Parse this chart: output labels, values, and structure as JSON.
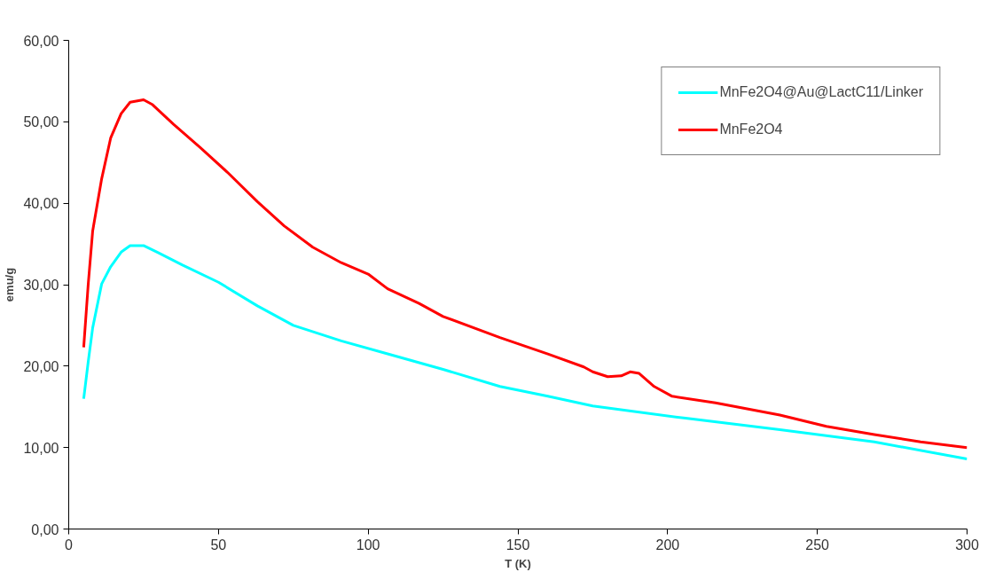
{
  "chart_data": {
    "type": "line",
    "xlabel": "T (K)",
    "ylabel": "emu/g",
    "xlim": [
      0,
      300
    ],
    "xticks": [
      0,
      50,
      100,
      150,
      200,
      250,
      300
    ],
    "ylim": [
      0,
      60
    ],
    "yticks": [
      {
        "value": 0,
        "label": "0,00"
      },
      {
        "value": 10,
        "label": "10,00"
      },
      {
        "value": 20,
        "label": "20,00"
      },
      {
        "value": 30,
        "label": "30,00"
      },
      {
        "value": 40,
        "label": "40,00"
      },
      {
        "value": 50,
        "label": "50,00"
      },
      {
        "value": 60,
        "label": "60,00"
      }
    ],
    "grid": false,
    "legend": "top right",
    "marker": "none",
    "line_style": "solid",
    "series": [
      {
        "name": "MnFe2O4@Au@LactC11/Linker",
        "color": "#00ffff",
        "x": [
          5,
          6.5,
          8,
          11,
          14,
          17.5,
          20.5,
          25,
          30,
          38,
          50,
          63,
          75,
          91,
          106.5,
          125,
          144,
          160,
          175,
          206,
          237.5,
          269,
          300
        ],
        "values": [
          16.0,
          20.5,
          24.7,
          30.1,
          32.2,
          34.0,
          34.8,
          34.8,
          33.9,
          32.4,
          30.3,
          27.4,
          25.0,
          23.1,
          21.5,
          19.6,
          17.5,
          16.3,
          15.1,
          13.6,
          12.2,
          10.7,
          8.6
        ]
      },
      {
        "name": "MnFe2O4",
        "color": "#ff0000",
        "x": [
          5,
          6.5,
          8,
          11,
          14,
          17.5,
          20.5,
          25,
          28,
          35,
          44,
          53,
          63,
          72,
          81.5,
          91,
          100,
          106.5,
          117,
          125,
          144,
          160,
          172,
          175,
          180,
          184.5,
          187.5,
          190.5,
          195.5,
          201.5,
          216,
          237.5,
          253,
          269,
          284.5,
          300
        ],
        "values": [
          22.3,
          30,
          36.6,
          43,
          48,
          51,
          52.4,
          52.7,
          52.1,
          49.7,
          46.8,
          43.8,
          40.2,
          37.2,
          34.6,
          32.7,
          31.3,
          29.5,
          27.7,
          26.1,
          23.5,
          21.5,
          19.9,
          19.3,
          18.7,
          18.8,
          19.3,
          19.1,
          17.5,
          16.3,
          15.5,
          14.0,
          12.6,
          11.6,
          10.7,
          10.0
        ]
      }
    ]
  }
}
